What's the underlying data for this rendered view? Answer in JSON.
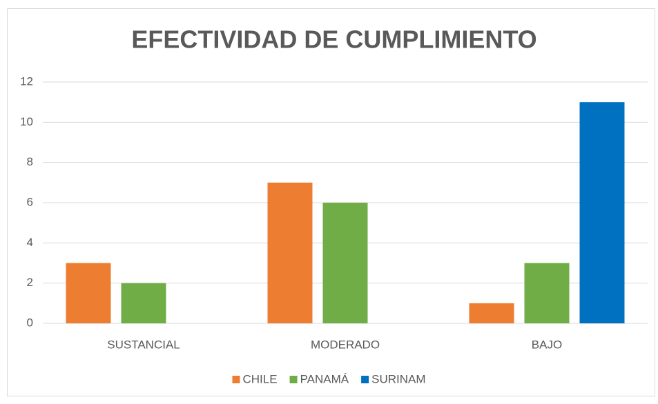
{
  "chart_data": {
    "type": "bar",
    "title": "EFECTIVIDAD DE CUMPLIMIENTO",
    "categories": [
      "SUSTANCIAL",
      "MODERADO",
      "BAJO"
    ],
    "series": [
      {
        "name": "CHILE",
        "color": "#ed7d31",
        "values": [
          3,
          7,
          1
        ]
      },
      {
        "name": "PANAMÁ",
        "color": "#70ad47",
        "values": [
          2,
          6,
          3
        ]
      },
      {
        "name": "SURINAM",
        "color": "#0070c0",
        "values": [
          0,
          0,
          11
        ]
      }
    ],
    "ylim": [
      0,
      12
    ],
    "yticks": [
      0,
      2,
      4,
      6,
      8,
      10,
      12
    ],
    "grid": true,
    "legend": "bottom"
  }
}
